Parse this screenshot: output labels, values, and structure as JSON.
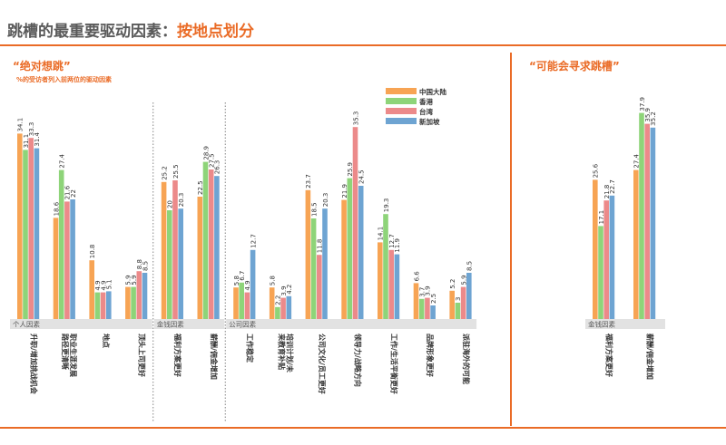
{
  "header": {
    "title_main": "跳槽的最重要驱动因素：",
    "title_accent": "按地点划分",
    "left_subtitle": "“绝对想跳”",
    "left_note": "%的受访者列入前两位的驱动因素",
    "right_subtitle": "“可能会寻求跳槽”"
  },
  "colors": {
    "accent": "#ea6b26",
    "text": "#5a5a5a"
  },
  "chart_data": [
    {
      "type": "bar",
      "title": "“绝对想跳”",
      "subtitle": "%的受访者列入前两位的驱动因素",
      "legend_position": "top-center",
      "series": [
        {
          "name": "中国大陆",
          "color": "#f7a454",
          "values": [
            34.1,
            18.6,
            10.8,
            5.9,
            25.2,
            22.5,
            5.8,
            5.8,
            23.7,
            21.9,
            14.1,
            6.6,
            5.2
          ]
        },
        {
          "name": "香港",
          "color": "#8ed479",
          "values": [
            31.1,
            27.4,
            4.9,
            5.9,
            20,
            28.9,
            6.7,
            2.2,
            18.5,
            25.9,
            19.3,
            3.7,
            3
          ]
        },
        {
          "name": "台湾",
          "color": "#ec8a8a",
          "values": [
            33.3,
            21.6,
            4.9,
            8.8,
            25.5,
            27.5,
            4.9,
            3.9,
            11.8,
            35.3,
            12.7,
            3.9,
            5.9
          ]
        },
        {
          "name": "新加坡",
          "color": "#6ea4d2",
          "values": [
            31.4,
            22,
            5.1,
            8.5,
            20.3,
            26.3,
            12.7,
            4.2,
            20.3,
            24.5,
            11.9,
            2.5,
            8.5
          ]
        }
      ],
      "categories": [
        "升职/增加挑战机会",
        "职业生涯发展路径更清晰",
        "地点",
        "顶头上司更好",
        "福利方案更好",
        "薪酬/佣金增加",
        "工作稳定",
        "培训计划/未来教育补贴",
        "公司文化/员工更好",
        "领导力/战略方向",
        "工作/生活平衡更好",
        "品牌形象更好",
        "派驻海外的可能"
      ],
      "groups": [
        {
          "label": "个人因素",
          "count": 4
        },
        {
          "label": "金钱因素",
          "count": 2
        },
        {
          "label": "公司因素",
          "count": 7
        }
      ]
    },
    {
      "type": "bar",
      "title": "“可能会寻求跳槽”",
      "series": [
        {
          "name": "中国大陆",
          "color": "#f7a454",
          "values": [
            25.6,
            27.4
          ]
        },
        {
          "name": "香港",
          "color": "#8ed479",
          "values": [
            17.1,
            37.9
          ]
        },
        {
          "name": "台湾",
          "color": "#ec8a8a",
          "values": [
            21.8,
            35.9
          ]
        },
        {
          "name": "新加坡",
          "color": "#6ea4d2",
          "values": [
            22.7,
            35.2
          ]
        }
      ],
      "categories": [
        "福利方案更好",
        "薪酬/佣金增加"
      ],
      "groups": [
        {
          "label": "金钱因素",
          "count": 2
        }
      ]
    }
  ]
}
